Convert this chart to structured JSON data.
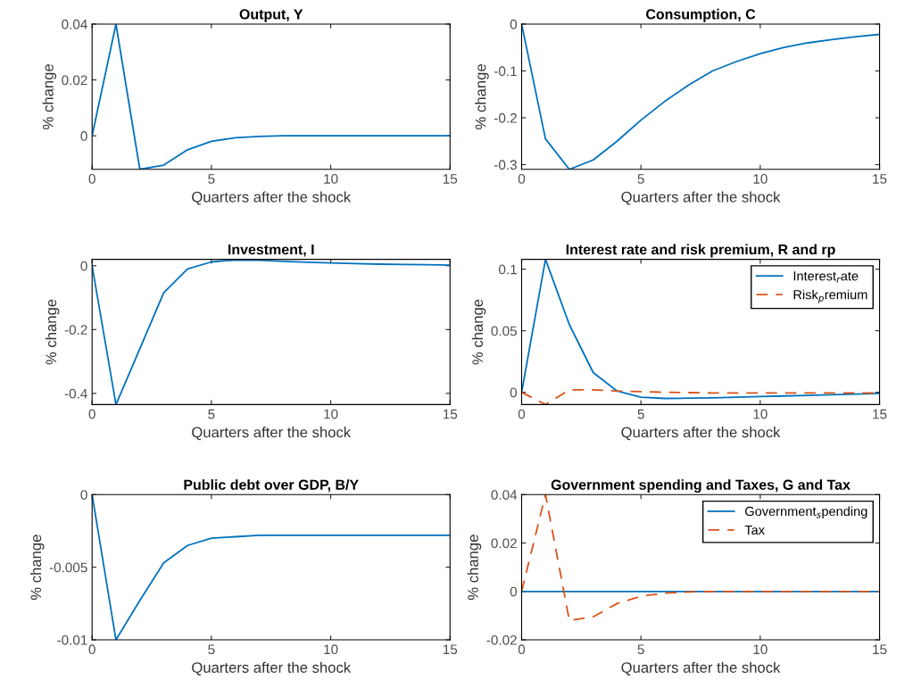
{
  "chart_data": [
    {
      "type": "line",
      "title": "Output, Y",
      "xlabel": "Quarters after the shock",
      "ylabel": "% change",
      "x": [
        0,
        1,
        2,
        3,
        4,
        5,
        6,
        7,
        8,
        9,
        10,
        11,
        12,
        13,
        14,
        15
      ],
      "xlim": [
        0,
        15
      ],
      "xticks": [
        0,
        5,
        10,
        15
      ],
      "ylim": [
        -0.012,
        0.04
      ],
      "yticks": [
        0,
        0.02,
        0.04
      ],
      "grid": false,
      "legend": false,
      "series": [
        {
          "color": "#0072bd",
          "line_style": "solid",
          "values": [
            0,
            0.04,
            -0.012,
            -0.0105,
            -0.005,
            -0.002,
            -0.0007,
            -0.0002,
            0,
            0,
            0,
            0,
            0,
            0,
            0,
            0
          ]
        }
      ]
    },
    {
      "type": "line",
      "title": "Consumption, C",
      "xlabel": "Quarters after the shock",
      "ylabel": "% change",
      "x": [
        0,
        1,
        2,
        3,
        4,
        5,
        6,
        7,
        8,
        9,
        10,
        11,
        12,
        13,
        14,
        15
      ],
      "xlim": [
        0,
        15
      ],
      "xticks": [
        0,
        5,
        10,
        15
      ],
      "ylim": [
        -0.31,
        0
      ],
      "yticks": [
        -0.3,
        -0.2,
        -0.1,
        0
      ],
      "grid": false,
      "legend": false,
      "series": [
        {
          "color": "#0072bd",
          "line_style": "solid",
          "values": [
            0,
            -0.245,
            -0.31,
            -0.29,
            -0.25,
            -0.205,
            -0.165,
            -0.13,
            -0.1,
            -0.08,
            -0.063,
            -0.05,
            -0.04,
            -0.033,
            -0.027,
            -0.022
          ]
        }
      ]
    },
    {
      "type": "line",
      "title": "Investment, I",
      "xlabel": "Quarters after the shock",
      "ylabel": "% change",
      "x": [
        0,
        1,
        2,
        3,
        4,
        5,
        6,
        7,
        8,
        9,
        10,
        11,
        12,
        13,
        14,
        15
      ],
      "xlim": [
        0,
        15
      ],
      "xticks": [
        0,
        5,
        10,
        15
      ],
      "ylim": [
        -0.435,
        0.02
      ],
      "yticks": [
        -0.4,
        -0.2,
        0
      ],
      "grid": false,
      "legend": false,
      "series": [
        {
          "color": "#0072bd",
          "line_style": "solid",
          "values": [
            0,
            -0.435,
            -0.26,
            -0.085,
            -0.01,
            0.012,
            0.018,
            0.017,
            0.014,
            0.011,
            0.009,
            0.007,
            0.005,
            0.004,
            0.003,
            0.002
          ]
        }
      ]
    },
    {
      "type": "line",
      "title": "Interest rate and risk premium, R and rp",
      "xlabel": "Quarters after the shock",
      "ylabel": "% change",
      "x": [
        0,
        1,
        2,
        3,
        4,
        5,
        6,
        7,
        8,
        9,
        10,
        11,
        12,
        13,
        14,
        15
      ],
      "xlim": [
        0,
        15
      ],
      "xticks": [
        0,
        5,
        10,
        15
      ],
      "ylim": [
        -0.01,
        0.108
      ],
      "yticks": [
        0,
        0.05,
        0.1
      ],
      "grid": false,
      "legend": "top right",
      "series": [
        {
          "name": "Interest$_{r}$ate",
          "color": "#0072bd",
          "line_style": "solid",
          "values": [
            0,
            0.108,
            0.055,
            0.016,
            0.001,
            -0.004,
            -0.005,
            -0.0048,
            -0.0045,
            -0.004,
            -0.0035,
            -0.003,
            -0.0025,
            -0.002,
            -0.0015,
            -0.001
          ]
        },
        {
          "name": "Risk$_{p}$remium",
          "color": "#d95319",
          "line_style": "dashed",
          "values": [
            0,
            -0.01,
            0.002,
            0.002,
            0.001,
            0.0005,
            0,
            -0.0003,
            -0.0005,
            -0.0005,
            -0.0005,
            -0.0005,
            -0.0005,
            -0.0005,
            -0.0005,
            -0.0005
          ]
        }
      ]
    },
    {
      "type": "line",
      "title": "Public debt over GDP, B/Y",
      "xlabel": "Quarters after the shock",
      "ylabel": "% change",
      "x": [
        0,
        1,
        2,
        3,
        4,
        5,
        6,
        7,
        8,
        9,
        10,
        11,
        12,
        13,
        14,
        15
      ],
      "xlim": [
        0,
        15
      ],
      "xticks": [
        0,
        5,
        10,
        15
      ],
      "ylim": [
        -0.01,
        0
      ],
      "yticks": [
        -0.01,
        -0.005,
        0
      ],
      "grid": false,
      "legend": false,
      "series": [
        {
          "color": "#0072bd",
          "line_style": "solid",
          "values": [
            0,
            -0.01,
            -0.0073,
            -0.0047,
            -0.0035,
            -0.003,
            -0.0029,
            -0.0028,
            -0.0028,
            -0.0028,
            -0.0028,
            -0.0028,
            -0.0028,
            -0.0028,
            -0.0028,
            -0.0028
          ]
        }
      ]
    },
    {
      "type": "line",
      "title": "Government spending and Taxes, G and Tax",
      "xlabel": "Quarters after the shock",
      "ylabel": "% change",
      "x": [
        0,
        1,
        2,
        3,
        4,
        5,
        6,
        7,
        8,
        9,
        10,
        11,
        12,
        13,
        14,
        15
      ],
      "xlim": [
        0,
        15
      ],
      "xticks": [
        0,
        5,
        10,
        15
      ],
      "ylim": [
        -0.02,
        0.04
      ],
      "yticks": [
        -0.02,
        0,
        0.02,
        0.04
      ],
      "grid": false,
      "legend": "top right",
      "series": [
        {
          "name": "Government$_{s}$pending",
          "color": "#0072bd",
          "line_style": "solid",
          "values": [
            0,
            0,
            0,
            0,
            0,
            0,
            0,
            0,
            0,
            0,
            0,
            0,
            0,
            0,
            0,
            0
          ]
        },
        {
          "name": "Tax",
          "color": "#d95319",
          "line_style": "dashed",
          "values": [
            0,
            0.04,
            -0.012,
            -0.0105,
            -0.005,
            -0.002,
            -0.0007,
            -0.0002,
            0,
            0,
            0,
            0,
            0,
            0,
            0,
            0
          ]
        }
      ]
    }
  ]
}
